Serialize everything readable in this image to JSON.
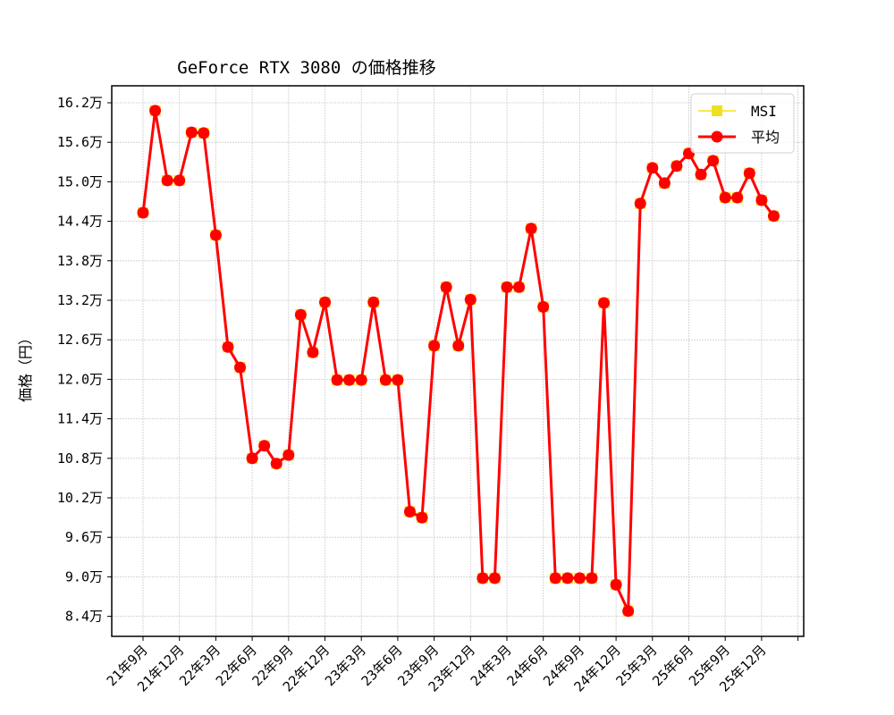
{
  "chart_data": {
    "type": "line",
    "title": "GeForce RTX 3080 の価格推移",
    "xlabel": "",
    "ylabel": "価格（円）",
    "ylim": [
      8.15,
      16.55
    ],
    "y_unit_suffix": "万",
    "y_ticks": [
      8.4,
      9.0,
      9.6,
      10.2,
      10.8,
      11.4,
      12.0,
      12.6,
      13.2,
      13.8,
      14.4,
      15.0,
      15.6,
      16.2
    ],
    "y_tick_labels": [
      "8.4万",
      "9.0万",
      "9.6万",
      "10.2万",
      "10.8万",
      "11.4万",
      "12.0万",
      "12.6万",
      "13.2万",
      "13.8万",
      "14.4万",
      "15.0万",
      "15.6万",
      "16.2万"
    ],
    "x_tick_labels": [
      "21年9月",
      "21年12月",
      "22年3月",
      "22年6月",
      "22年9月",
      "22年12月",
      "23年3月",
      "23年6月",
      "23年9月",
      "23年12月",
      "24年3月",
      "24年6月",
      "24年9月",
      "24年12月",
      "25年3月",
      "25年6月",
      "25年9月",
      "25年12月"
    ],
    "grid": true,
    "legend_position": "upper right",
    "x": [
      "21年9月",
      "21年10月",
      "21年11月",
      "21年12月",
      "22年1月",
      "22年2月",
      "22年3月",
      "22年4月",
      "22年5月",
      "22年6月",
      "22年7月",
      "22年8月",
      "22年9月",
      "22年10月",
      "22年11月",
      "22年12月",
      "23年1月",
      "23年2月",
      "23年3月",
      "23年4月",
      "23年5月",
      "23年6月",
      "23年7月",
      "23年8月",
      "23年9月",
      "23年10月",
      "23年11月",
      "23年12月",
      "24年1月",
      "24年2月",
      "24年3月",
      "24年4月",
      "24年5月",
      "24年6月",
      "24年7月",
      "24年8月",
      "24年9月",
      "24年10月",
      "24年11月",
      "24年12月",
      "25年1月",
      "25年2月",
      "25年3月",
      "25年4月",
      "25年5月",
      "25年6月",
      "25年7月",
      "25年8月",
      "25年9月",
      "25年10月",
      "25年11月",
      "25年12月",
      "26年1月"
    ],
    "series": [
      {
        "name": "MSI",
        "color": "#f0e020",
        "marker": "square",
        "values": [
          14.53,
          16.08,
          15.02,
          15.02,
          15.75,
          15.74,
          14.19,
          12.49,
          12.18,
          10.8,
          10.99,
          10.72,
          10.85,
          12.98,
          12.41,
          13.17,
          11.99,
          11.99,
          11.99,
          13.17,
          11.99,
          11.99,
          9.99,
          9.9,
          12.51,
          13.4,
          12.51,
          13.21,
          8.98,
          8.98,
          13.4,
          13.4,
          14.29,
          13.1,
          8.98,
          8.98,
          8.98,
          8.98,
          13.16,
          8.88,
          8.48,
          14.67,
          15.21,
          14.98,
          15.24,
          15.43,
          15.11,
          15.32,
          14.76,
          14.76,
          15.13,
          14.72,
          14.48
        ]
      },
      {
        "name": "平均",
        "color": "#ff0000",
        "marker": "circle",
        "values": [
          14.53,
          16.08,
          15.02,
          15.02,
          15.75,
          15.74,
          14.19,
          12.49,
          12.18,
          10.8,
          10.99,
          10.72,
          10.85,
          12.98,
          12.41,
          13.17,
          11.99,
          11.99,
          11.99,
          13.17,
          11.99,
          11.99,
          9.99,
          9.9,
          12.51,
          13.4,
          12.51,
          13.21,
          8.98,
          8.98,
          13.4,
          13.4,
          14.29,
          13.1,
          8.98,
          8.98,
          8.98,
          8.98,
          13.16,
          8.88,
          8.48,
          14.67,
          15.21,
          14.98,
          15.24,
          15.43,
          15.11,
          15.32,
          14.76,
          14.76,
          15.13,
          14.72,
          14.48
        ]
      }
    ]
  },
  "legend": {
    "items": [
      {
        "label": "MSI",
        "color": "#f0e020"
      },
      {
        "label": "平均",
        "color": "#ff0000"
      }
    ]
  }
}
